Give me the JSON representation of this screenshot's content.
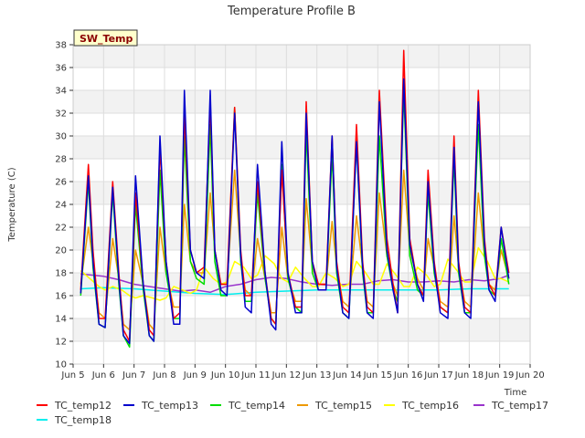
{
  "chart_data": {
    "type": "line",
    "title": "Temperature Profile B",
    "xlabel": "Time",
    "ylabel": "Temperature (C)",
    "annotation": "SW_Temp",
    "ylim": [
      10,
      38
    ],
    "yticks": [
      10,
      12,
      14,
      16,
      18,
      20,
      22,
      24,
      26,
      28,
      30,
      32,
      34,
      36,
      38
    ],
    "xlim": [
      5,
      20
    ],
    "xticks": [
      {
        "x": 5,
        "label": "Jun 5"
      },
      {
        "x": 6,
        "label": "Jun 6"
      },
      {
        "x": 7,
        "label": "Jun 7"
      },
      {
        "x": 8,
        "label": "Jun 8"
      },
      {
        "x": 9,
        "label": "Jun 9"
      },
      {
        "x": 10,
        "label": "Jun 10"
      },
      {
        "x": 11,
        "label": "Jun 11"
      },
      {
        "x": 12,
        "label": "Jun 12"
      },
      {
        "x": 13,
        "label": "Jun 13"
      },
      {
        "x": 14,
        "label": "Jun 14"
      },
      {
        "x": 15,
        "label": "Jun 15"
      },
      {
        "x": 16,
        "label": "Jun 16"
      },
      {
        "x": 17,
        "label": "Jun 17"
      },
      {
        "x": 18,
        "label": "Jun 18"
      },
      {
        "x": 19,
        "label": "Jun 19"
      },
      {
        "x": 20,
        "label": "Jun 20"
      }
    ],
    "grid": true,
    "legend_position": "bottom",
    "series": [
      {
        "name": "TC_temp12",
        "color": "#ff0000",
        "x": [
          5.25,
          5.5,
          5.65,
          5.85,
          6.05,
          6.3,
          6.5,
          6.65,
          6.85,
          7.05,
          7.3,
          7.5,
          7.65,
          7.85,
          8.05,
          8.3,
          8.5,
          8.65,
          8.85,
          9.05,
          9.3,
          9.5,
          9.65,
          9.85,
          10.05,
          10.3,
          10.5,
          10.65,
          10.85,
          11.05,
          11.3,
          11.5,
          11.65,
          11.85,
          12.05,
          12.3,
          12.5,
          12.65,
          12.85,
          13.05,
          13.3,
          13.5,
          13.65,
          13.85,
          14.05,
          14.3,
          14.5,
          14.65,
          14.85,
          15.05,
          15.3,
          15.5,
          15.65,
          15.85,
          16.05,
          16.3,
          16.5,
          16.65,
          16.85,
          17.05,
          17.3,
          17.5,
          17.65,
          17.85,
          18.05,
          18.3,
          18.5,
          18.65,
          18.85,
          19.05,
          19.3
        ],
        "y": [
          16.5,
          27.5,
          20.0,
          14.0,
          14.0,
          26.0,
          18.0,
          13.0,
          12.0,
          25.0,
          17.0,
          13.0,
          12.5,
          29.0,
          19.0,
          14.0,
          14.5,
          32.0,
          20.0,
          18.0,
          18.5,
          33.0,
          20.0,
          17.0,
          17.0,
          32.5,
          20.0,
          16.0,
          16.0,
          26.0,
          18.0,
          14.0,
          13.5,
          27.0,
          18.0,
          15.0,
          15.0,
          33.0,
          19.0,
          17.0,
          17.0,
          30.0,
          19.0,
          15.0,
          14.5,
          31.0,
          19.0,
          15.0,
          14.5,
          34.0,
          21.0,
          17.0,
          14.5,
          37.5,
          21.0,
          17.0,
          16.0,
          27.0,
          19.0,
          15.0,
          14.5,
          30.0,
          19.0,
          15.0,
          14.5,
          34.0,
          21.0,
          17.0,
          16.0,
          22.0,
          18.0
        ]
      },
      {
        "name": "TC_temp13",
        "color": "#0000cc",
        "x": [
          5.25,
          5.5,
          5.65,
          5.85,
          6.05,
          6.3,
          6.5,
          6.65,
          6.85,
          7.05,
          7.3,
          7.5,
          7.65,
          7.85,
          8.05,
          8.3,
          8.5,
          8.65,
          8.85,
          9.05,
          9.3,
          9.5,
          9.65,
          9.85,
          10.05,
          10.3,
          10.5,
          10.65,
          10.85,
          11.05,
          11.3,
          11.5,
          11.65,
          11.85,
          12.05,
          12.3,
          12.5,
          12.65,
          12.85,
          13.05,
          13.3,
          13.5,
          13.65,
          13.85,
          14.05,
          14.3,
          14.5,
          14.65,
          14.85,
          15.05,
          15.3,
          15.5,
          15.65,
          15.85,
          16.05,
          16.3,
          16.5,
          16.65,
          16.85,
          17.05,
          17.3,
          17.5,
          17.65,
          17.85,
          18.05,
          18.3,
          18.5,
          18.65,
          18.85,
          19.05,
          19.3
        ],
        "y": [
          16.2,
          26.5,
          19.0,
          13.5,
          13.2,
          25.5,
          17.5,
          12.5,
          11.8,
          26.5,
          17.0,
          12.5,
          12.0,
          30.0,
          19.0,
          13.5,
          13.5,
          34.0,
          20.0,
          18.0,
          17.5,
          34.0,
          20.0,
          16.5,
          16.0,
          32.0,
          19.5,
          15.0,
          14.5,
          27.5,
          18.0,
          13.5,
          13.0,
          29.5,
          18.0,
          14.5,
          14.5,
          32.0,
          19.0,
          16.5,
          16.5,
          30.0,
          18.5,
          14.5,
          14.0,
          29.5,
          18.5,
          14.5,
          14.0,
          33.0,
          20.0,
          16.5,
          14.5,
          35.0,
          20.5,
          17.0,
          15.5,
          26.0,
          18.5,
          14.5,
          14.0,
          29.0,
          18.5,
          14.5,
          14.0,
          33.0,
          20.5,
          16.5,
          15.5,
          22.0,
          17.5
        ]
      },
      {
        "name": "TC_temp14",
        "color": "#00dd00",
        "x": [
          5.25,
          5.5,
          5.65,
          5.85,
          6.05,
          6.3,
          6.5,
          6.65,
          6.85,
          7.05,
          7.3,
          7.5,
          7.65,
          7.85,
          8.05,
          8.3,
          8.5,
          8.65,
          8.85,
          9.05,
          9.3,
          9.5,
          9.65,
          9.85,
          10.05,
          10.3,
          10.5,
          10.65,
          10.85,
          11.05,
          11.3,
          11.5,
          11.65,
          11.85,
          12.05,
          12.3,
          12.5,
          12.65,
          12.85,
          13.05,
          13.3,
          13.5,
          13.65,
          13.85,
          14.05,
          14.3,
          14.5,
          14.65,
          14.85,
          15.05,
          15.3,
          15.5,
          15.65,
          15.85,
          16.05,
          16.3,
          16.5,
          16.65,
          16.85,
          17.05,
          17.3,
          17.5,
          17.65,
          17.85,
          18.05,
          18.3,
          18.5,
          18.65,
          18.85,
          19.05,
          19.3
        ],
        "y": [
          16.0,
          26.0,
          18.5,
          13.5,
          13.2,
          25.0,
          17.0,
          12.5,
          11.5,
          24.0,
          16.5,
          12.5,
          12.0,
          27.0,
          18.0,
          14.0,
          14.0,
          30.0,
          19.0,
          17.5,
          17.0,
          31.0,
          19.0,
          16.0,
          16.0,
          32.5,
          19.0,
          15.5,
          15.5,
          25.0,
          17.5,
          14.0,
          13.5,
          27.5,
          17.5,
          15.0,
          14.5,
          30.5,
          18.0,
          16.5,
          16.5,
          28.5,
          18.0,
          14.5,
          14.0,
          29.5,
          18.0,
          14.5,
          14.5,
          30.0,
          19.5,
          16.5,
          15.5,
          34.0,
          19.5,
          16.5,
          16.0,
          25.0,
          18.0,
          15.0,
          14.5,
          28.0,
          18.0,
          14.5,
          14.5,
          31.0,
          19.5,
          16.5,
          16.0,
          21.0,
          17.0
        ]
      },
      {
        "name": "TC_temp15",
        "color": "#ee9900",
        "x": [
          5.25,
          5.5,
          5.65,
          5.85,
          6.05,
          6.3,
          6.5,
          6.65,
          6.85,
          7.05,
          7.3,
          7.5,
          7.65,
          7.85,
          8.05,
          8.3,
          8.5,
          8.65,
          8.85,
          9.05,
          9.3,
          9.5,
          9.65,
          9.85,
          10.05,
          10.3,
          10.5,
          10.65,
          10.85,
          11.05,
          11.3,
          11.5,
          11.65,
          11.85,
          12.05,
          12.3,
          12.5,
          12.65,
          12.85,
          13.05,
          13.3,
          13.5,
          13.65,
          13.85,
          14.05,
          14.3,
          14.5,
          14.65,
          14.85,
          15.05,
          15.3,
          15.5,
          15.65,
          15.85,
          16.05,
          16.3,
          16.5,
          16.65,
          16.85,
          17.05,
          17.3,
          17.5,
          17.65,
          17.85,
          18.05,
          18.3,
          18.5,
          18.65,
          18.85,
          19.05,
          19.3
        ],
        "y": [
          17.0,
          22.0,
          19.0,
          14.5,
          14.0,
          21.0,
          17.5,
          13.5,
          13.0,
          20.0,
          17.0,
          13.5,
          13.0,
          22.0,
          18.0,
          15.0,
          15.0,
          24.0,
          19.0,
          18.0,
          18.0,
          25.0,
          20.0,
          17.0,
          17.0,
          27.0,
          19.5,
          16.5,
          16.0,
          21.0,
          17.5,
          14.5,
          14.5,
          22.0,
          17.5,
          15.5,
          15.5,
          24.5,
          18.5,
          17.0,
          17.0,
          22.5,
          18.5,
          15.5,
          15.0,
          23.0,
          18.5,
          15.5,
          15.0,
          25.0,
          19.5,
          17.0,
          16.0,
          27.0,
          20.0,
          17.5,
          16.5,
          21.0,
          18.5,
          15.5,
          15.0,
          23.0,
          18.5,
          15.5,
          15.0,
          25.0,
          19.5,
          17.0,
          16.5,
          20.0,
          17.5
        ]
      },
      {
        "name": "TC_temp16",
        "color": "#ffff00",
        "x": [
          5.25,
          5.55,
          5.85,
          6.05,
          6.3,
          6.6,
          6.85,
          7.05,
          7.3,
          7.6,
          7.85,
          8.05,
          8.3,
          8.6,
          8.85,
          9.05,
          9.3,
          9.6,
          9.85,
          10.05,
          10.3,
          10.6,
          10.85,
          11.05,
          11.3,
          11.6,
          11.85,
          12.05,
          12.3,
          12.6,
          12.85,
          13.05,
          13.3,
          13.6,
          13.85,
          14.05,
          14.3,
          14.6,
          14.85,
          15.05,
          15.3,
          15.6,
          15.85,
          16.05,
          16.3,
          16.6,
          16.85,
          17.05,
          17.3,
          17.6,
          17.85,
          18.05,
          18.3,
          18.6,
          18.85,
          19.05,
          19.3
        ],
        "y": [
          18.2,
          17.5,
          16.8,
          16.5,
          16.8,
          16.5,
          16.0,
          15.8,
          16.0,
          15.8,
          15.6,
          15.8,
          16.8,
          16.5,
          16.2,
          16.5,
          18.5,
          17.5,
          17.0,
          17.2,
          19.0,
          18.5,
          17.5,
          17.8,
          19.5,
          18.8,
          17.5,
          17.2,
          18.5,
          17.5,
          16.8,
          16.8,
          18.0,
          17.5,
          16.8,
          17.0,
          19.0,
          18.0,
          17.0,
          17.0,
          18.8,
          17.8,
          16.8,
          16.8,
          18.5,
          17.8,
          16.8,
          17.0,
          19.2,
          18.2,
          17.2,
          17.2,
          20.2,
          19.0,
          17.5,
          17.5,
          17.2
        ]
      },
      {
        "name": "TC_temp17",
        "color": "#9933cc",
        "x": [
          5.25,
          6.0,
          6.5,
          7.0,
          7.5,
          8.0,
          8.5,
          9.0,
          9.5,
          10.0,
          10.5,
          11.0,
          11.5,
          12.0,
          12.5,
          13.0,
          13.5,
          14.0,
          14.5,
          15.0,
          15.5,
          16.0,
          16.5,
          17.0,
          17.5,
          18.0,
          18.5,
          19.0,
          19.3
        ],
        "y": [
          17.9,
          17.7,
          17.4,
          17.0,
          16.8,
          16.6,
          16.4,
          16.5,
          16.3,
          16.8,
          17.0,
          17.4,
          17.6,
          17.5,
          17.2,
          17.0,
          16.9,
          17.0,
          17.0,
          17.3,
          17.4,
          17.2,
          17.2,
          17.3,
          17.2,
          17.4,
          17.3,
          17.5,
          17.8
        ]
      },
      {
        "name": "TC_temp18",
        "color": "#00eeee",
        "x": [
          5.25,
          6.0,
          7.0,
          8.0,
          9.0,
          10.0,
          11.0,
          12.0,
          13.0,
          14.0,
          15.0,
          16.0,
          17.0,
          18.0,
          19.0,
          19.3
        ],
        "y": [
          16.6,
          16.7,
          16.6,
          16.4,
          16.2,
          16.1,
          16.3,
          16.4,
          16.5,
          16.5,
          16.5,
          16.5,
          16.5,
          16.6,
          16.6,
          16.6
        ]
      }
    ]
  }
}
